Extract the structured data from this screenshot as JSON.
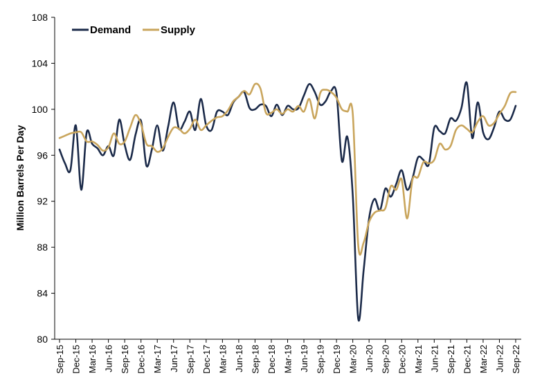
{
  "chart_data": {
    "type": "line",
    "title": "",
    "xlabel": "",
    "ylabel": "Million Barrels Per Day",
    "ylim": [
      80,
      108
    ],
    "yticks": [
      80,
      84,
      88,
      92,
      96,
      100,
      104,
      108
    ],
    "grid": false,
    "legend_position": "top-left",
    "x_tick_labels": [
      "Sep-15",
      "Dec-15",
      "Mar-16",
      "Jun-16",
      "Sep-16",
      "Dec-16",
      "Mar-17",
      "Jun-17",
      "Sep-17",
      "Dec-17",
      "Mar-18",
      "Jun-18",
      "Sep-18",
      "Dec-18",
      "Mar-19",
      "Jun-19",
      "Sep-19",
      "Dec-19",
      "Mar-20",
      "Jun-20",
      "Sep-20",
      "Dec-20",
      "Mar-21",
      "Jun-21",
      "Sep-21",
      "Dec-21",
      "Mar-22",
      "Jun-22",
      "Sep-22"
    ],
    "x": [
      "Sep-15",
      "Oct-15",
      "Nov-15",
      "Dec-15",
      "Jan-16",
      "Feb-16",
      "Mar-16",
      "Apr-16",
      "May-16",
      "Jun-16",
      "Jul-16",
      "Aug-16",
      "Sep-16",
      "Oct-16",
      "Nov-16",
      "Dec-16",
      "Jan-17",
      "Feb-17",
      "Mar-17",
      "Apr-17",
      "May-17",
      "Jun-17",
      "Jul-17",
      "Aug-17",
      "Sep-17",
      "Oct-17",
      "Nov-17",
      "Dec-17",
      "Jan-18",
      "Feb-18",
      "Mar-18",
      "Apr-18",
      "May-18",
      "Jun-18",
      "Jul-18",
      "Aug-18",
      "Sep-18",
      "Oct-18",
      "Nov-18",
      "Dec-18",
      "Jan-19",
      "Feb-19",
      "Mar-19",
      "Apr-19",
      "May-19",
      "Jun-19",
      "Jul-19",
      "Aug-19",
      "Sep-19",
      "Oct-19",
      "Nov-19",
      "Dec-19",
      "Jan-20",
      "Feb-20",
      "Mar-20",
      "Apr-20",
      "May-20",
      "Jun-20",
      "Jul-20",
      "Aug-20",
      "Sep-20",
      "Oct-20",
      "Nov-20",
      "Dec-20",
      "Jan-21",
      "Feb-21",
      "Mar-21",
      "Apr-21",
      "May-21",
      "Jun-21",
      "Jul-21",
      "Aug-21",
      "Sep-21",
      "Oct-21",
      "Nov-21",
      "Dec-21",
      "Jan-22",
      "Feb-22",
      "Mar-22",
      "Apr-22",
      "May-22",
      "Jun-22",
      "Jul-22",
      "Aug-22",
      "Sep-22"
    ],
    "series": [
      {
        "name": "Demand",
        "color": "#1b2a49",
        "values": [
          96.5,
          95.3,
          94.7,
          98.6,
          93.0,
          98.0,
          97.0,
          96.6,
          96.0,
          96.8,
          96.0,
          99.1,
          96.9,
          95.6,
          97.8,
          99.0,
          95.1,
          96.5,
          98.6,
          96.4,
          98.5,
          100.6,
          98.3,
          98.9,
          99.8,
          98.2,
          100.9,
          98.6,
          98.2,
          99.8,
          99.8,
          99.5,
          100.6,
          101.1,
          101.5,
          100.1,
          100.0,
          100.4,
          100.3,
          99.4,
          100.4,
          99.5,
          100.3,
          100.0,
          100.1,
          101.2,
          102.2,
          101.5,
          100.4,
          100.7,
          101.6,
          101.4,
          95.5,
          97.6,
          92.5,
          81.8,
          86.0,
          90.5,
          92.2,
          91.2,
          93.1,
          92.4,
          93.5,
          94.7,
          93.0,
          94.0,
          95.8,
          95.6,
          95.2,
          98.4,
          98.1,
          97.9,
          99.2,
          99.0,
          100.1,
          102.3,
          97.5,
          100.6,
          98.0,
          97.4,
          98.4,
          99.8,
          99.1,
          99.1,
          100.3
        ]
      },
      {
        "name": "Supply",
        "color": "#c9a55c",
        "values": [
          97.5,
          97.7,
          97.9,
          98.0,
          98.0,
          97.2,
          97.2,
          96.9,
          96.4,
          96.7,
          97.9,
          97.0,
          97.2,
          98.4,
          99.5,
          98.7,
          97.0,
          96.8,
          96.3,
          96.6,
          97.6,
          98.4,
          98.3,
          97.9,
          98.3,
          99.1,
          98.2,
          98.6,
          99.0,
          99.3,
          99.4,
          99.9,
          100.7,
          101.1,
          101.6,
          101.3,
          102.2,
          101.8,
          99.7,
          99.7,
          100.0,
          99.6,
          100.0,
          99.8,
          100.3,
          99.8,
          100.9,
          99.2,
          101.4,
          101.7,
          101.5,
          101.0,
          100.0,
          99.8,
          99.6,
          88.2,
          88.4,
          90.2,
          91.0,
          91.2,
          91.4,
          93.3,
          93.0,
          93.9,
          90.5,
          93.9,
          94.1,
          95.4,
          95.3,
          95.6,
          97.0,
          96.5,
          96.8,
          98.2,
          98.6,
          98.3,
          98.0,
          98.9,
          99.4,
          98.6,
          98.8,
          99.6,
          100.3,
          101.4,
          101.5
        ]
      }
    ]
  }
}
